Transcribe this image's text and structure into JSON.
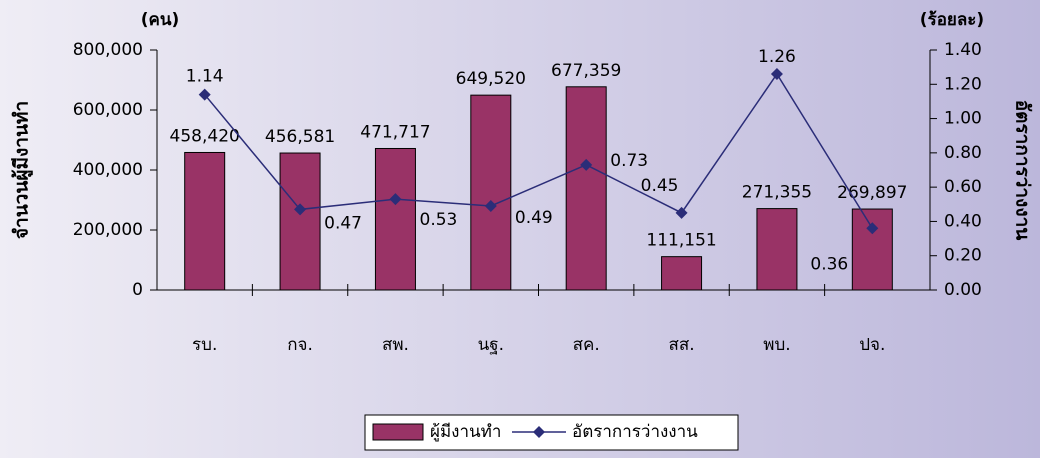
{
  "chart_data": {
    "type": "bar_line",
    "y_unit": "(คน)",
    "y2_unit": "(ร้อยละ)",
    "ylabel": "จำนวนผู้มีงานทำ",
    "y2label": "อัตราการว่างงาน",
    "categories": [
      "รบ.",
      "กจ.",
      "สพ.",
      "นฐ.",
      "สค.",
      "สส.",
      "พบ.",
      "ปจ."
    ],
    "series": [
      {
        "name": "ผู้มีงานทำ",
        "type": "bar",
        "color": "#993366",
        "values": [
          458420,
          456581,
          471717,
          649520,
          677359,
          111151,
          271355,
          269897
        ],
        "value_labels": [
          "458,420",
          "456,581",
          "471,717",
          "649,520",
          "677,359",
          "111,151",
          "271,355",
          "269,897"
        ]
      },
      {
        "name": "อัตราการว่างงาน",
        "type": "line",
        "axis": "y2",
        "color": "#2b2d78",
        "values": [
          1.14,
          0.47,
          0.53,
          0.49,
          0.73,
          0.45,
          1.26,
          0.36
        ]
      }
    ],
    "ylim": [
      0,
      800000
    ],
    "yticks": [
      0,
      {
        "value": 200000,
        "label": "200,000"
      },
      {
        "value": 400000,
        "label": "400,000"
      },
      {
        "value": 600000,
        "label": "600,000"
      },
      {
        "value": 800000,
        "label": "800,000"
      }
    ],
    "y2lim": [
      0,
      1.4
    ],
    "y2ticks": [
      {
        "value": 0,
        "label": "0.00"
      },
      {
        "value": 0.2,
        "label": "0.20"
      },
      {
        "value": 0.4,
        "label": "0.40"
      },
      {
        "value": 0.6,
        "label": "0.60"
      },
      {
        "value": 0.8,
        "label": "0.80"
      },
      {
        "value": 1,
        "label": "1.00"
      },
      {
        "value": 1.2,
        "label": "1.20"
      },
      {
        "value": 1.4,
        "label": "1.40"
      }
    ],
    "legend": "bottom"
  }
}
